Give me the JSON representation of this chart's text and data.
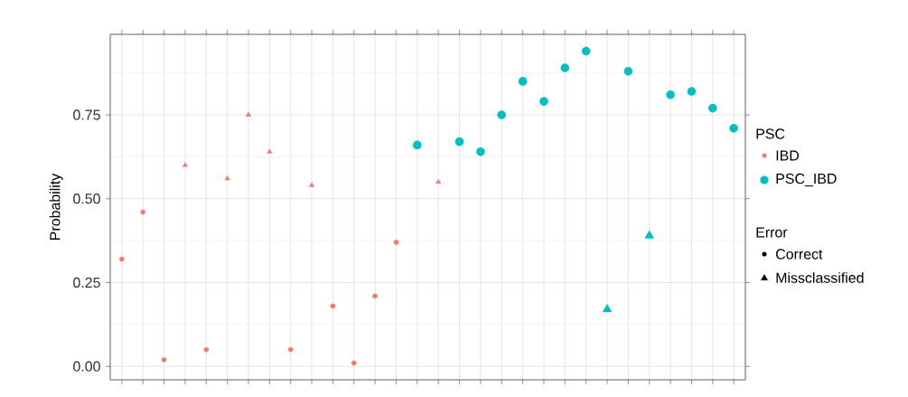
{
  "chart_data": {
    "type": "scatter",
    "ylabel": "Probability",
    "legend_title": "PSC",
    "legend": "right",
    "grid": true,
    "tick_labels": "y",
    "categories": [
      null,
      null,
      null,
      null,
      null,
      null,
      null,
      null,
      null,
      null,
      null,
      null,
      null,
      null,
      null,
      null,
      null,
      null,
      null,
      null,
      null,
      null,
      null,
      null,
      null,
      null,
      null,
      null,
      null,
      null
    ],
    "ylim": [
      -0.04,
      0.99
    ],
    "yticks": [
      {
        "value": 0,
        "label": "0.00"
      },
      {
        "value": 0.25,
        "label": "0.25"
      },
      {
        "value": 0.5,
        "label": "0.50"
      },
      {
        "value": 0.75,
        "label": "0.75"
      }
    ],
    "series": [
      {
        "name": "IBD",
        "color": "#f8766d",
        "marker": "circle",
        "values": [
          0.32,
          0.46,
          0.02,
          null,
          0.05,
          null,
          null,
          null,
          0.05,
          null,
          0.18,
          0.01,
          0.21,
          0.37,
          null,
          null,
          null,
          null,
          null,
          null,
          null,
          null,
          null,
          null,
          null,
          null,
          null,
          null,
          null,
          null
        ]
      },
      {
        "color": "#f8766d",
        "marker": "triangle",
        "values": [
          null,
          null,
          null,
          0.6,
          null,
          0.56,
          0.75,
          0.64,
          null,
          0.54,
          null,
          null,
          null,
          null,
          null,
          0.55,
          null,
          null,
          null,
          null,
          null,
          null,
          null,
          null,
          null,
          null,
          null,
          null,
          null,
          null
        ]
      },
      {
        "name": "PSC_IBD",
        "color": "#00bfc4",
        "marker": "circle",
        "values": [
          null,
          null,
          null,
          null,
          null,
          null,
          null,
          null,
          null,
          null,
          null,
          null,
          null,
          null,
          0.66,
          null,
          0.67,
          0.64,
          0.75,
          0.85,
          0.79,
          0.89,
          0.94,
          null,
          0.88,
          null,
          0.81,
          0.82,
          0.77,
          0.71
        ]
      },
      {
        "color": "#00bfc4",
        "marker": "triangle",
        "values": [
          null,
          null,
          null,
          null,
          null,
          null,
          null,
          null,
          null,
          null,
          null,
          null,
          null,
          null,
          null,
          null,
          null,
          null,
          null,
          null,
          null,
          null,
          null,
          0.17,
          null,
          0.39,
          null,
          null,
          null,
          null
        ]
      }
    ],
    "annotations": [
      "Error",
      "Correct",
      "Missclassified"
    ]
  }
}
